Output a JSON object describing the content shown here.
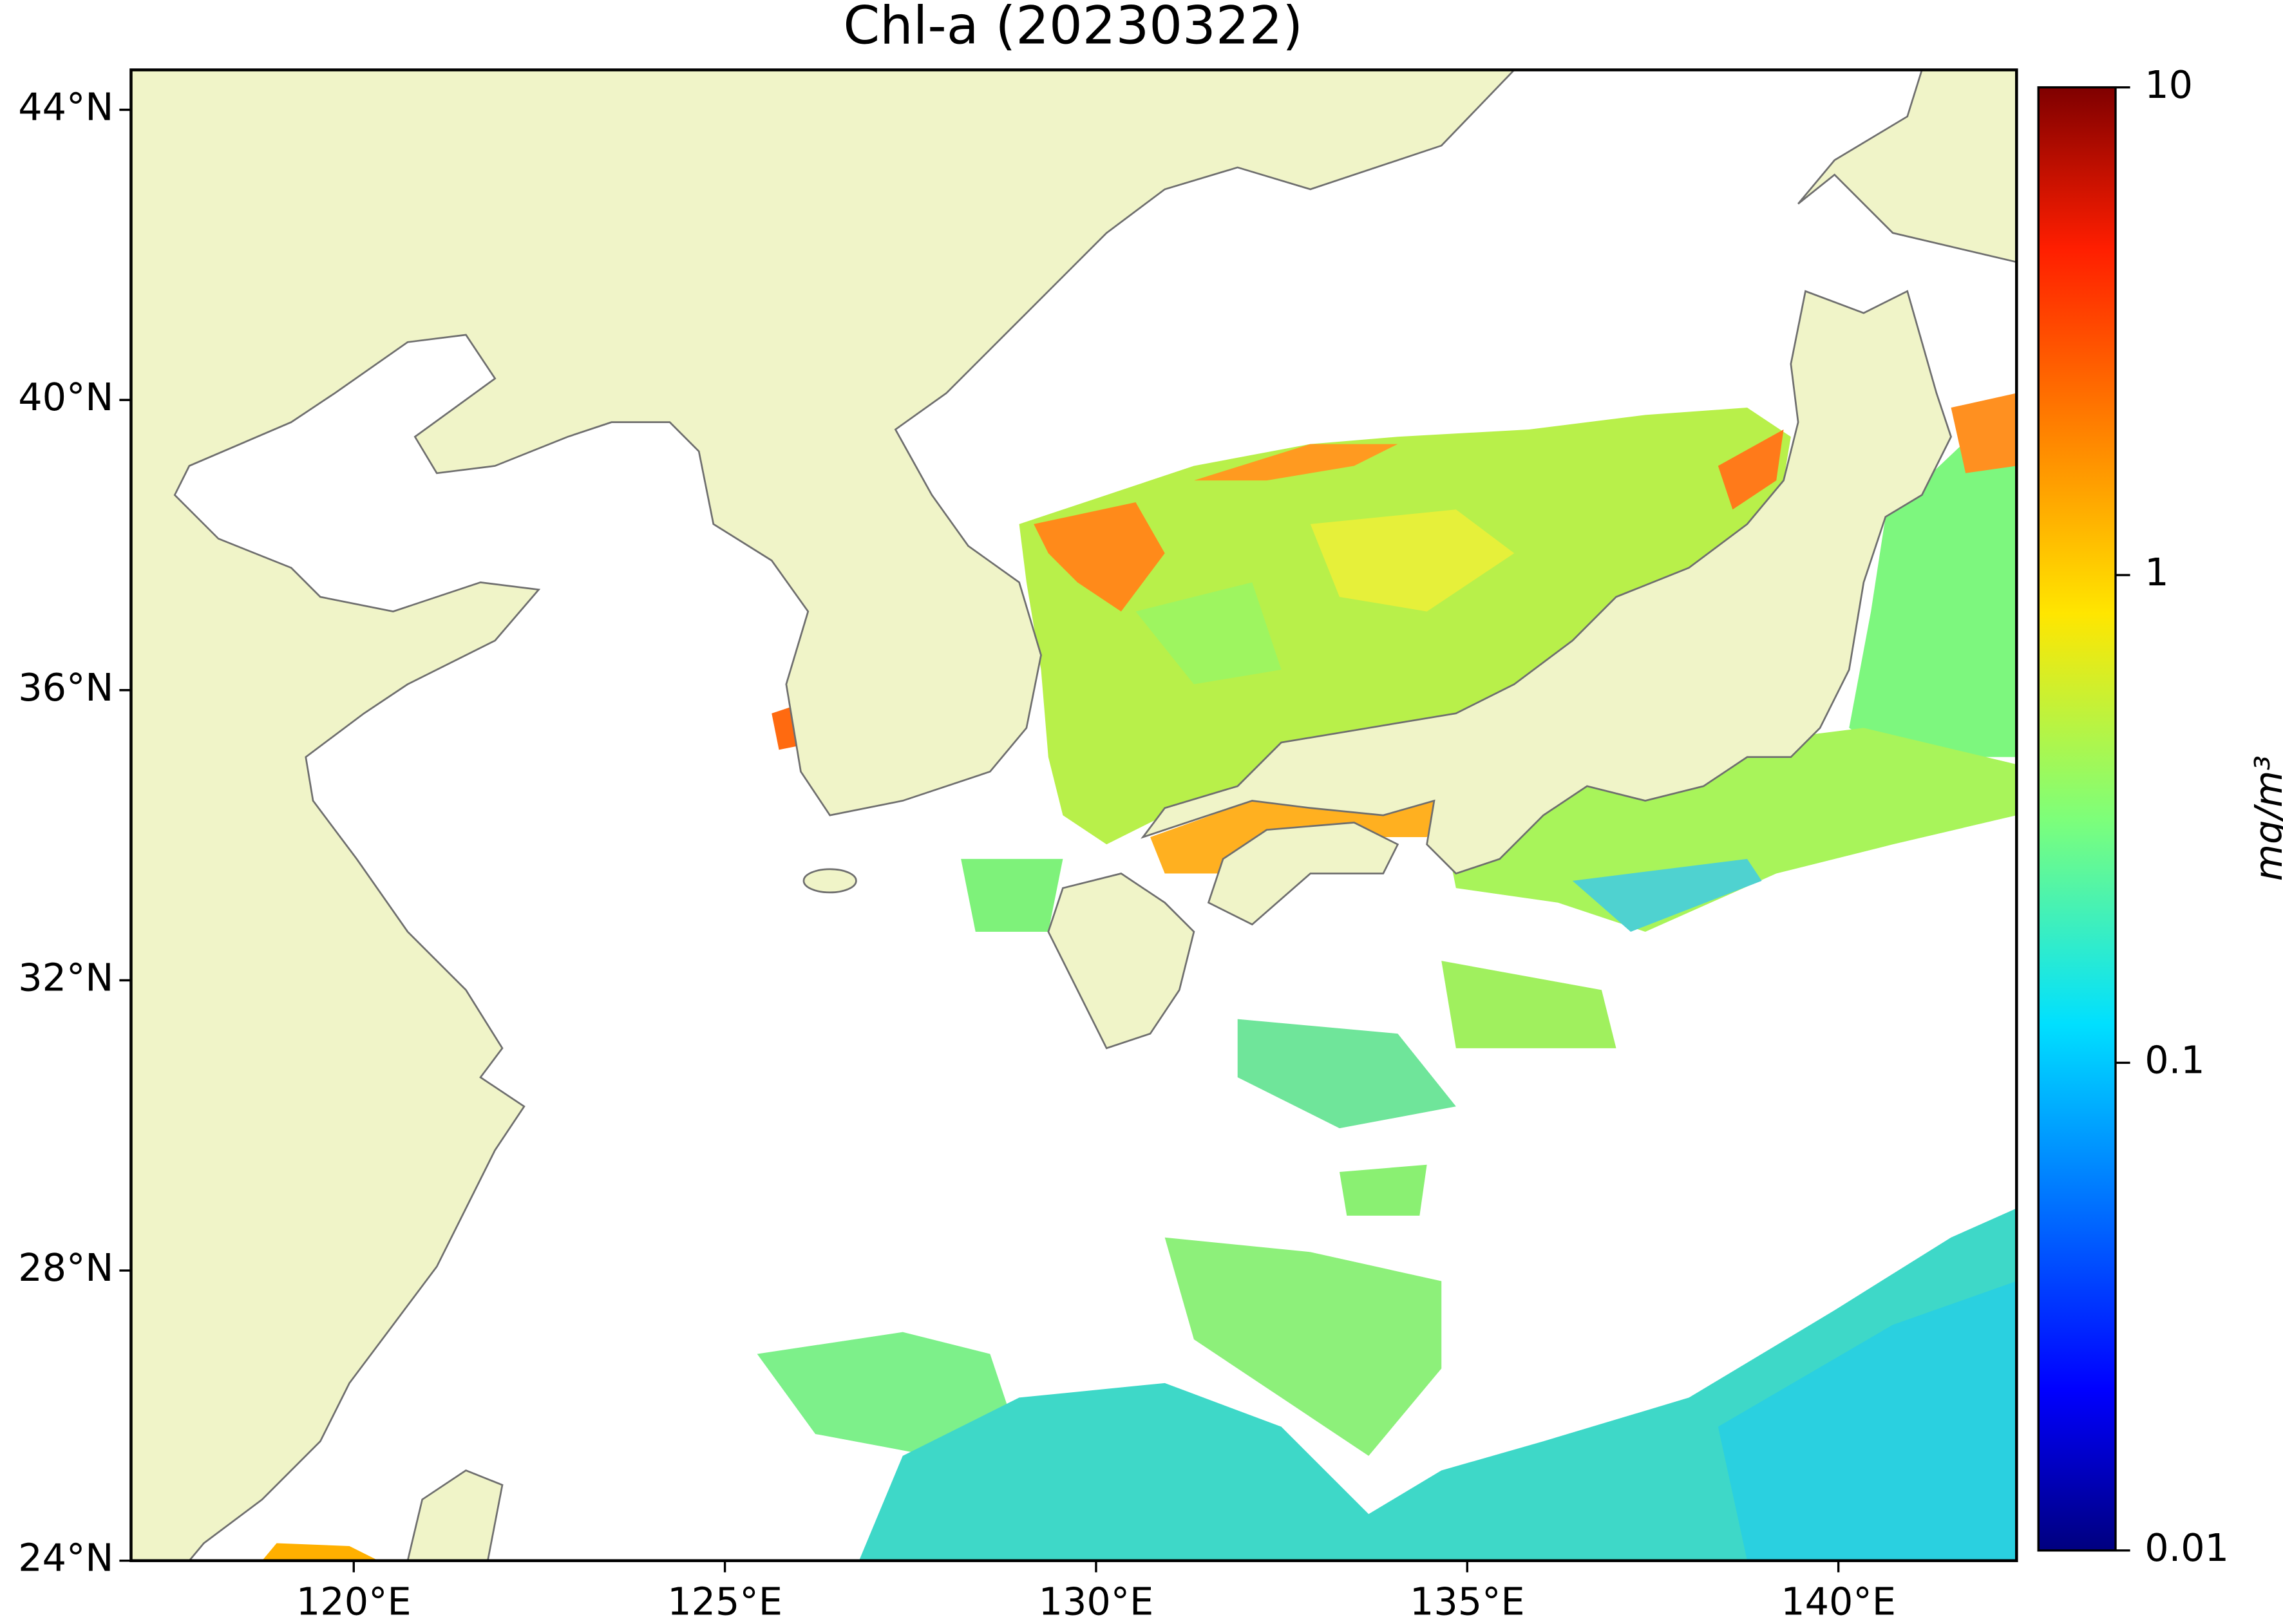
{
  "map": {
    "title": "Chl-a (20230322)",
    "xlim": [
      117,
      142.4
    ],
    "ylim": [
      24,
      44.55
    ],
    "xticks": [
      {
        "value": 120,
        "label": "120°E"
      },
      {
        "value": 125,
        "label": "125°E"
      },
      {
        "value": 130,
        "label": "130°E"
      },
      {
        "value": 135,
        "label": "135°E"
      },
      {
        "value": 140,
        "label": "140°E"
      }
    ],
    "yticks": [
      {
        "value": 24,
        "label": "24°N"
      },
      {
        "value": 28,
        "label": "28°N"
      },
      {
        "value": 32,
        "label": "32°N"
      },
      {
        "value": 36,
        "label": "36°N"
      },
      {
        "value": 40,
        "label": "40°N"
      },
      {
        "value": 44,
        "label": "44°N"
      }
    ],
    "colorbar": {
      "label": "mg/m³",
      "lim": [
        0.01,
        10
      ],
      "ticks": [
        0.01,
        0.1,
        1,
        10
      ],
      "log_scale": true,
      "colormap": "jet"
    }
  }
}
